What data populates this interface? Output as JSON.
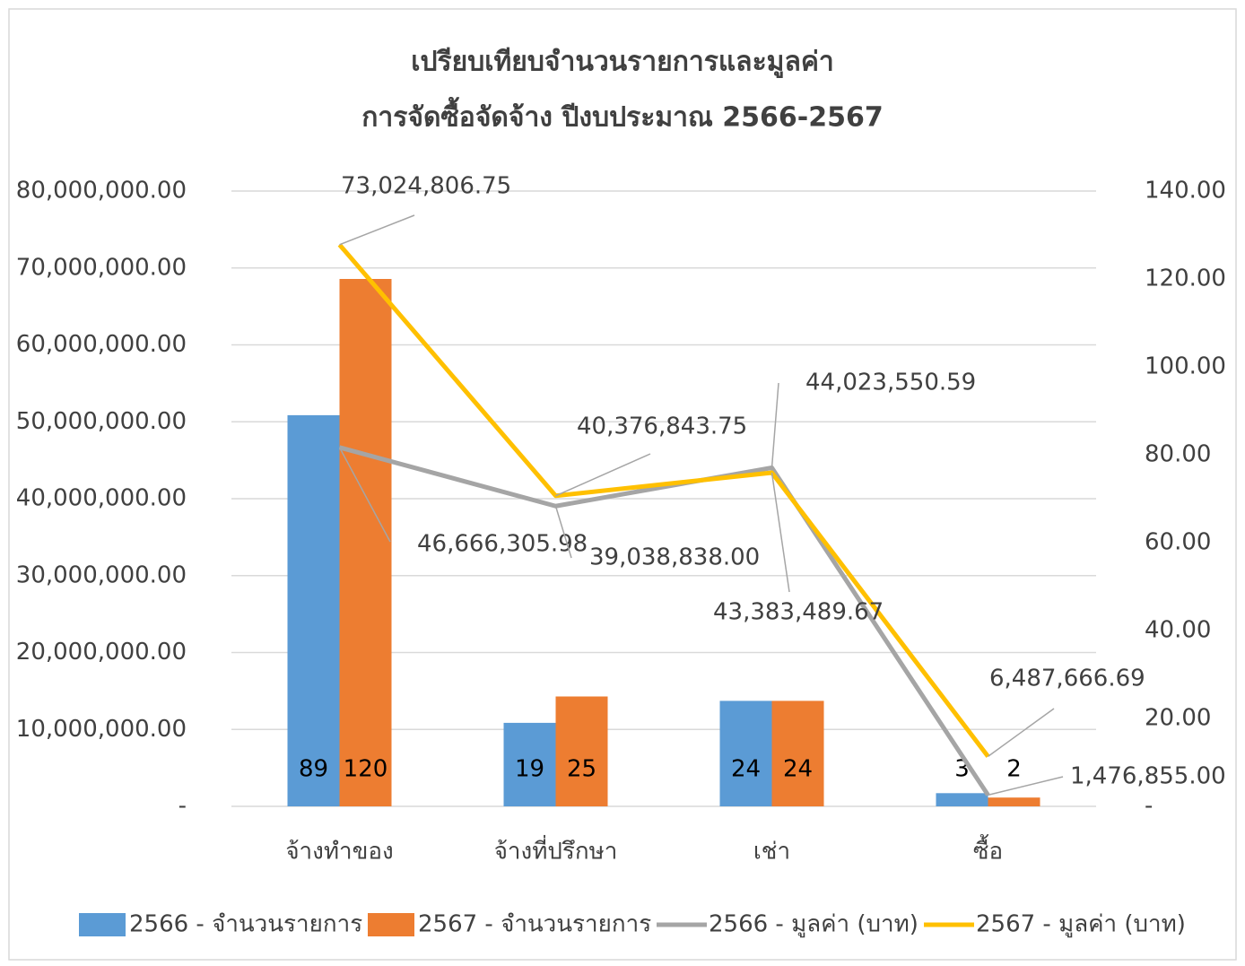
{
  "chart_data": {
    "type": "bar-line",
    "title": [
      "เปรียบเทียบจำนวนรายการและมูลค่า",
      "การจัดซื้อจัดจ้าง ปีงบประมาณ 2566-2567"
    ],
    "categories": [
      "จ้างทำของ",
      "จ้างที่ปรึกษา",
      "เช่า",
      "ซื้อ"
    ],
    "ylim": [
      0,
      80000000
    ],
    "yticks": [
      {
        "value": 0,
        "label": "-"
      },
      {
        "value": 10000000,
        "label": "10,000,000.00"
      },
      {
        "value": 20000000,
        "label": "20,000,000.00"
      },
      {
        "value": 30000000,
        "label": "30,000,000.00"
      },
      {
        "value": 40000000,
        "label": "40,000,000.00"
      },
      {
        "value": 50000000,
        "label": "50,000,000.00"
      },
      {
        "value": 60000000,
        "label": "60,000,000.00"
      },
      {
        "value": 70000000,
        "label": "70,000,000.00"
      },
      {
        "value": 80000000,
        "label": "80,000,000.00"
      }
    ],
    "y2lim": [
      0,
      140
    ],
    "y2ticks": [
      {
        "value": 0,
        "label": "-"
      },
      {
        "value": 20,
        "label": "20.00"
      },
      {
        "value": 40,
        "label": "40.00"
      },
      {
        "value": 60,
        "label": "60.00"
      },
      {
        "value": 80,
        "label": "80.00"
      },
      {
        "value": 100,
        "label": "100.00"
      },
      {
        "value": 120,
        "label": "120.00"
      },
      {
        "value": 140,
        "label": "140.00"
      }
    ],
    "grid": true,
    "legend": "bottom",
    "series": [
      {
        "name": "2566 - จำนวนรายการ",
        "type": "bar",
        "axis": "y2",
        "color": "#5b9bd5",
        "values": [
          89,
          19,
          24,
          3
        ]
      },
      {
        "name": "2567 - จำนวนรายการ",
        "type": "bar",
        "axis": "y2",
        "color": "#ed7d31",
        "values": [
          120,
          25,
          24,
          2
        ]
      },
      {
        "name": "2566 - มูลค่า (บาท)",
        "type": "line",
        "color": "#a5a5a5",
        "values": [
          46666305.98,
          39038838.0,
          44023550.59,
          1476855.0
        ],
        "value_labels": [
          "46,666,305.98",
          "39,038,838.00",
          "44,023,550.59",
          "1,476,855.00"
        ]
      },
      {
        "name": "2567 - มูลค่า (บาท)",
        "type": "line",
        "color": "#ffc000",
        "values": [
          73024806.75,
          40376843.75,
          43383489.67,
          6487666.69
        ],
        "value_labels": [
          "73,024,806.75",
          "40,376,843.75",
          "43,383,489.67",
          "6,487,666.69"
        ]
      }
    ]
  }
}
